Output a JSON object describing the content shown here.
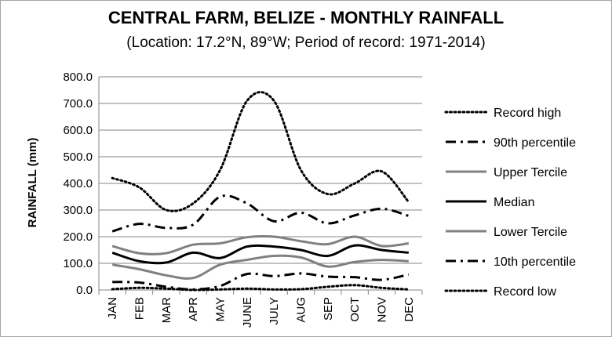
{
  "chart_data": {
    "type": "line",
    "title": "CENTRAL FARM, BELIZE - MONTHLY RAINFALL",
    "subtitle": "(Location: 17.2°N, 89°W; Period of record: 1971-2014)",
    "xlabel": "",
    "ylabel": "RAINFALL (mm)",
    "ylim": [
      0,
      800
    ],
    "yticks": [
      "0.0",
      "100.0",
      "200.0",
      "300.0",
      "400.0",
      "500.0",
      "600.0",
      "700.0",
      "800.0"
    ],
    "categories": [
      "JAN",
      "FEB",
      "MAR",
      "APR",
      "MAY",
      "JUNE",
      "JULY",
      "AUG",
      "SEP",
      "OCT",
      "NOV",
      "DEC"
    ],
    "grid": "horizontal",
    "legend_position": "right",
    "series": [
      {
        "name": "Record high",
        "style": "dotted",
        "color": "#000000",
        "values": [
          420,
          385,
          300,
          325,
          450,
          710,
          710,
          450,
          360,
          400,
          445,
          330
        ]
      },
      {
        "name": "90th percentile",
        "style": "dashdot",
        "color": "#000000",
        "values": [
          220,
          248,
          233,
          245,
          350,
          325,
          258,
          290,
          250,
          280,
          305,
          278
        ]
      },
      {
        "name": "Upper Tercile",
        "style": "solid",
        "color": "#808080",
        "values": [
          165,
          138,
          138,
          170,
          175,
          198,
          200,
          183,
          172,
          200,
          165,
          175
        ]
      },
      {
        "name": "Median",
        "style": "solid",
        "color": "#000000",
        "values": [
          140,
          108,
          103,
          140,
          120,
          163,
          163,
          150,
          128,
          167,
          150,
          140
        ]
      },
      {
        "name": "Lower Tercile",
        "style": "solid",
        "color": "#808080",
        "values": [
          95,
          78,
          55,
          45,
          95,
          113,
          128,
          122,
          88,
          105,
          113,
          108
        ]
      },
      {
        "name": "10th percentile",
        "style": "dashdot",
        "color": "#000000",
        "values": [
          30,
          28,
          12,
          2,
          15,
          60,
          52,
          62,
          50,
          48,
          38,
          58
        ]
      },
      {
        "name": "Record low",
        "style": "dotted",
        "color": "#000000",
        "values": [
          3,
          8,
          5,
          0,
          2,
          5,
          2,
          3,
          12,
          18,
          8,
          2
        ]
      }
    ]
  }
}
